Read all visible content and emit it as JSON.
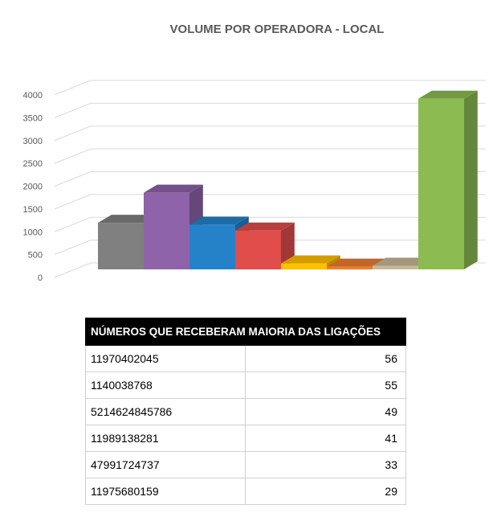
{
  "chart_data": {
    "type": "bar",
    "title": "VOLUME POR OPERADORA - LOCAL",
    "categories": [
      "",
      "",
      "",
      "",
      "",
      "",
      "",
      ""
    ],
    "values": [
      1020,
      1680,
      980,
      850,
      130,
      60,
      80,
      3740
    ],
    "colors": [
      "#808080",
      "#8e63a9",
      "#2582c9",
      "#e04d4b",
      "#ffc000",
      "#ed7d31",
      "#c8b89a",
      "#8cbb52"
    ],
    "ylim": [
      0,
      4000
    ],
    "yticks": [
      0,
      500,
      1000,
      1500,
      2000,
      2500,
      3000,
      3500,
      4000
    ],
    "grid": true
  },
  "table": {
    "header": "NÚMEROS QUE RECEBERAM MAIORIA DAS LIGAÇÕES",
    "rows": [
      {
        "number": "11970402045",
        "count": "56"
      },
      {
        "number": "1140038768",
        "count": "55"
      },
      {
        "number": "5214624845786",
        "count": "49"
      },
      {
        "number": "11989138281",
        "count": "41"
      },
      {
        "number": "47991724737",
        "count": "33"
      },
      {
        "number": "11975680159",
        "count": "29"
      }
    ]
  }
}
